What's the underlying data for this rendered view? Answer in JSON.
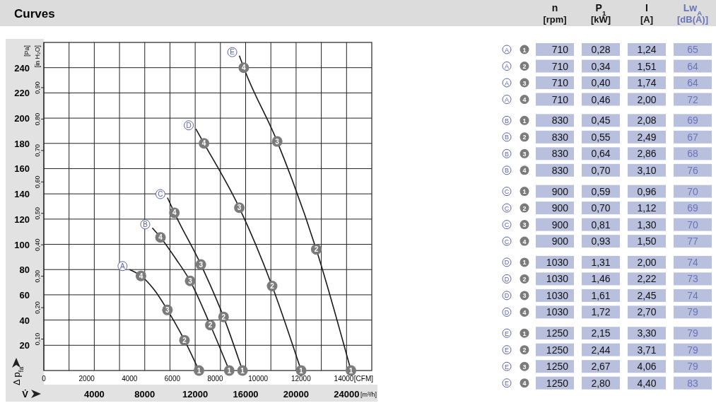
{
  "chart_data": [
    {
      "type": "line",
      "title": "Curves",
      "xlabel": "V̇",
      "ylabel": "Δ p$_{fa}$",
      "y2label": "[in H₂O]",
      "x2label": "[CFM]",
      "annotations": [
        "[Pa]",
        "[m³/h]",
        {
          "text": "4",
          "x": 7700,
          "y": 75
        },
        {
          "text": "3",
          "x": 9800,
          "y": 48
        },
        {
          "text": "2",
          "x": 11150,
          "y": 24
        },
        {
          "text": "1",
          "x": 12300,
          "y": 0
        },
        {
          "text": "4",
          "x": 9250,
          "y": 105.5
        },
        {
          "text": "3",
          "x": 11600,
          "y": 71
        },
        {
          "text": "2",
          "x": 13200,
          "y": 36
        },
        {
          "text": "1",
          "x": 14700,
          "y": 0
        },
        {
          "text": "4",
          "x": 10350,
          "y": 125
        },
        {
          "text": "3",
          "x": 12450,
          "y": 84
        },
        {
          "text": "2",
          "x": 14250,
          "y": 42.5
        },
        {
          "text": "1",
          "x": 15750,
          "y": 0
        },
        {
          "text": "4",
          "x": 12700,
          "y": 180
        },
        {
          "text": "3",
          "x": 15500,
          "y": 129
        },
        {
          "text": "2",
          "x": 18100,
          "y": 67
        },
        {
          "text": "1",
          "x": 20400,
          "y": 0
        },
        {
          "text": "4",
          "x": 15850,
          "y": 240
        },
        {
          "text": "3",
          "x": 18500,
          "y": 181.5
        },
        {
          "text": "2",
          "x": 21600,
          "y": 96
        },
        {
          "text": "1",
          "x": 24350,
          "y": 0
        }
      ],
      "series": [
        {
          "name": "A",
          "color": "#1a1a1a",
          "x": [
            6800,
            7700,
            8750,
            9800,
            11150,
            12300
          ],
          "values": [
            80,
            75,
            64,
            48,
            24,
            0
          ]
        },
        {
          "name": "B",
          "color": "#1a1a1a",
          "x": [
            8600,
            9250,
            10500,
            11600,
            13200,
            14700
          ],
          "values": [
            113,
            105.5,
            88,
            71,
            36,
            0
          ]
        },
        {
          "name": "C",
          "color": "#1a1a1a",
          "x": [
            9800,
            10350,
            12450,
            14250,
            15750
          ],
          "values": [
            137,
            125,
            84,
            42.5,
            0
          ]
        },
        {
          "name": "D",
          "color": "#1a1a1a",
          "x": [
            12050,
            12700,
            15500,
            18100,
            20400
          ],
          "values": [
            191.5,
            180,
            129,
            67,
            0
          ]
        },
        {
          "name": "E",
          "color": "#1a1a1a",
          "x": [
            15500,
            15850,
            18500,
            21600,
            24350
          ],
          "values": [
            249.5,
            240,
            181.5,
            96,
            0
          ]
        }
      ],
      "xlim": [
        0,
        26000
      ],
      "xticks": [
        {
          "value": 0,
          "label": null
        },
        {
          "value": 2000,
          "label": null
        },
        4000,
        {
          "value": 6000,
          "label": null
        },
        8000,
        {
          "value": 10000,
          "label": null
        },
        12000,
        {
          "value": 14000,
          "label": null
        },
        16000,
        {
          "value": 18000,
          "label": null
        },
        20000,
        {
          "value": 22000,
          "label": null
        },
        24000
      ],
      "ylim": [
        0,
        260
      ],
      "yticks": [
        20,
        40,
        60,
        80,
        100,
        120,
        140,
        160,
        180,
        200,
        220,
        240
      ],
      "y2lim": [
        0,
        1.0438
      ],
      "y2ticks": [
        {
          "value": 0.1,
          "label": "0,10"
        },
        {
          "value": 0.2,
          "label": "0,20"
        },
        {
          "value": 0.3,
          "label": "0,30"
        },
        {
          "value": 0.4,
          "label": "0,40"
        },
        {
          "value": 0.5,
          "label": "0,50"
        },
        {
          "value": 0.6,
          "label": "0,60"
        },
        {
          "value": 0.7,
          "label": "0,70"
        },
        {
          "value": 0.8,
          "label": "0,80"
        },
        {
          "value": 0.9,
          "label": "0,90"
        }
      ],
      "x2lim": [
        0,
        15303
      ],
      "x2ticks": [
        0,
        2000,
        4000,
        6000,
        8000,
        10000,
        12000,
        14000
      ],
      "grid": true,
      "marker": "circle"
    },
    {
      "type": "other",
      "categories": [
        "n [rpm]",
        "P$_{1}$ [kW]",
        "I [A]",
        "Lw$_{A}$ [dB(A)]"
      ],
      "y_categories": [
        "A 1",
        "A 2",
        "A 3",
        "A 4",
        "B 1",
        "B 2",
        "B 3",
        "B 4",
        "C 1",
        "C 2",
        "C 3",
        "C 4",
        "D 1",
        "D 2",
        "D 3",
        "D 4",
        "E 1",
        "E 2",
        "E 3",
        "E 4"
      ],
      "cell_labels": [
        [
          "710",
          "0,28",
          "1,24",
          "65"
        ],
        [
          "710",
          "0,34",
          "1,51",
          "64"
        ],
        [
          "710",
          "0,40",
          "1,74",
          "64"
        ],
        [
          "710",
          "0,46",
          "2,00",
          "72"
        ],
        [
          "830",
          "0,45",
          "2,08",
          "69"
        ],
        [
          "830",
          "0,55",
          "2,49",
          "67"
        ],
        [
          "830",
          "0,64",
          "2,86",
          "68"
        ],
        [
          "830",
          "0,70",
          "3,10",
          "76"
        ],
        [
          "900",
          "0,59",
          "0,96",
          "70"
        ],
        [
          "900",
          "0,70",
          "1,12",
          "69"
        ],
        [
          "900",
          "0,81",
          "1,30",
          "70"
        ],
        [
          "900",
          "0,93",
          "1,50",
          "77"
        ],
        [
          "1030",
          "1,31",
          "2,00",
          "74"
        ],
        [
          "1030",
          "1,46",
          "2,22",
          "73"
        ],
        [
          "1030",
          "1,61",
          "2,45",
          "74"
        ],
        [
          "1030",
          "1,72",
          "2,70",
          "79"
        ],
        [
          "1250",
          "2,15",
          "3,30",
          "79"
        ],
        [
          "1250",
          "2,44",
          "3,71",
          "79"
        ],
        [
          "1250",
          "2,67",
          "4,06",
          "79"
        ],
        [
          "1250",
          "2,80",
          "4,40",
          "83"
        ]
      ]
    }
  ]
}
